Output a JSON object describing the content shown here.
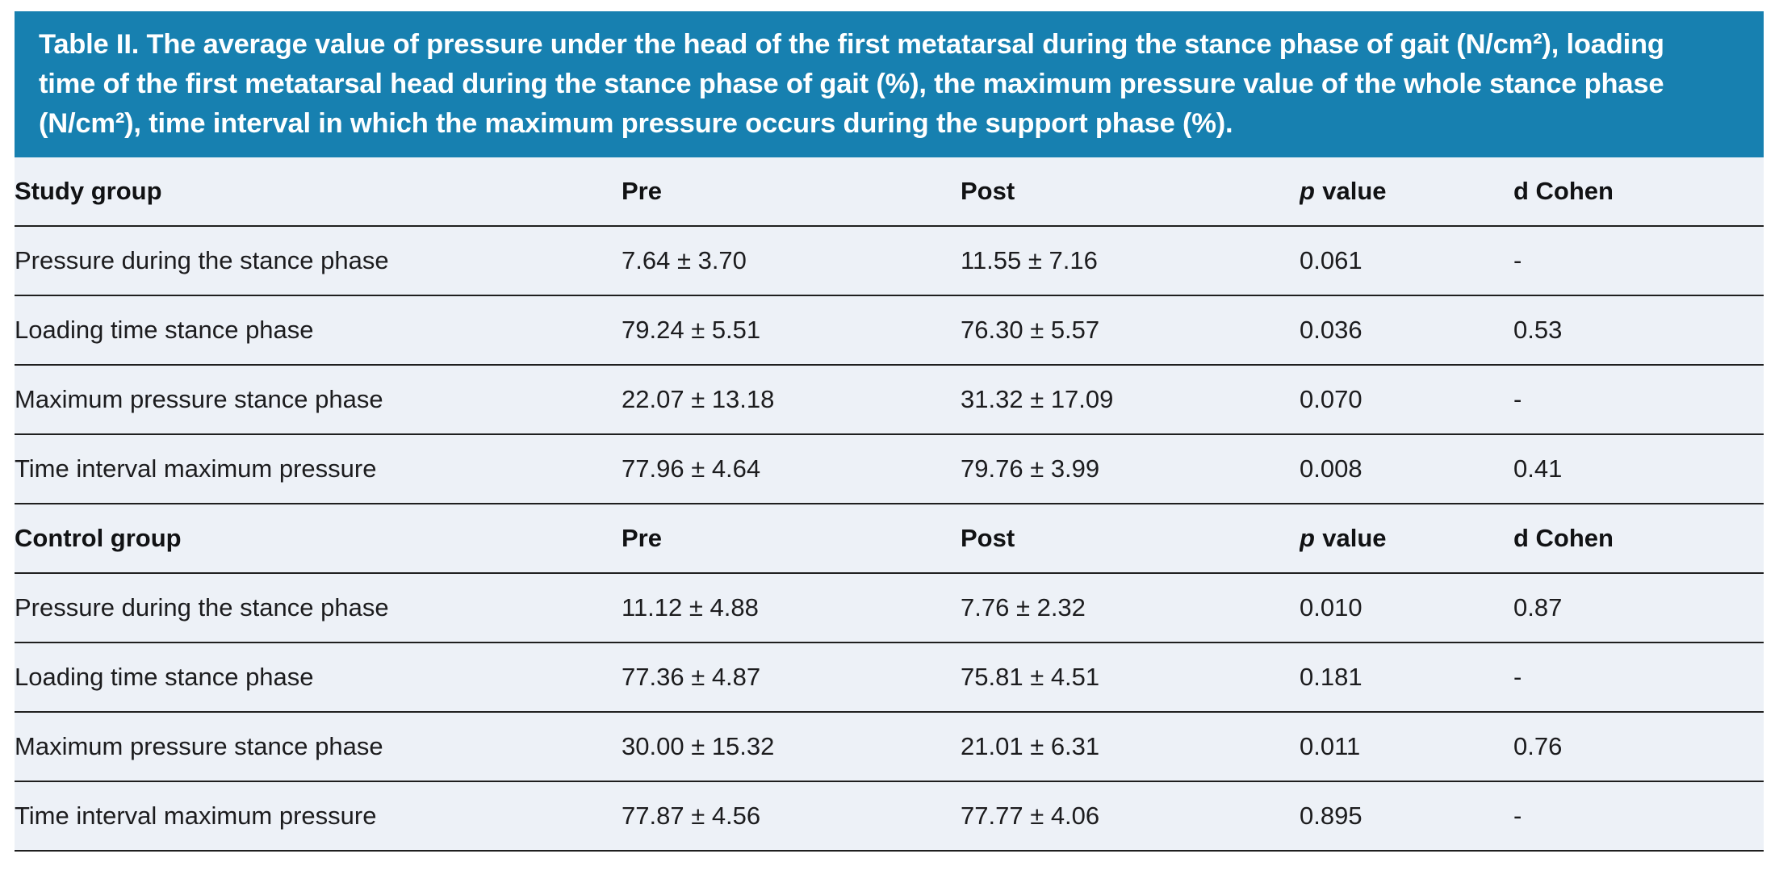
{
  "colors": {
    "caption_background": "#1780b0",
    "caption_text": "#ffffff",
    "table_background": "#edf1f7",
    "rule_line": "#1f1f1f",
    "body_text": "#1c1c1e"
  },
  "table": {
    "caption": "Table II. The average value of pressure under the head of the first metatarsal during the stance phase of gait (N/cm²), loading time of the first metatarsal head during the stance phase of gait (%), the maximum pressure value of the whole stance phase (N/cm²), time interval in which the maximum pressure occurs during the support phase (%).",
    "headers": {
      "pre": "Pre",
      "post": "Post",
      "p_prefix": "p",
      "p_suffix": "value",
      "d_cohen": "d Cohen"
    },
    "sections": [
      {
        "group_label": "Study group",
        "rows": [
          {
            "label": "Pressure during the stance phase",
            "pre": "7.64 ± 3.70",
            "post": "11.55 ± 7.16",
            "p": "0.061",
            "d": "-"
          },
          {
            "label": "Loading time stance phase",
            "pre": "79.24 ± 5.51",
            "post": "76.30 ± 5.57",
            "p": "0.036",
            "d": "0.53"
          },
          {
            "label": "Maximum pressure stance phase",
            "pre": "22.07 ± 13.18",
            "post": "31.32 ± 17.09",
            "p": "0.070",
            "d": "-"
          },
          {
            "label": "Time interval maximum pressure",
            "pre": "77.96 ± 4.64",
            "post": "79.76 ± 3.99",
            "p": "0.008",
            "d": "0.41"
          }
        ]
      },
      {
        "group_label": "Control group",
        "rows": [
          {
            "label": "Pressure during the stance phase",
            "pre": "11.12 ± 4.88",
            "post": "7.76 ± 2.32",
            "p": "0.010",
            "d": "0.87"
          },
          {
            "label": "Loading time stance phase",
            "pre": "77.36 ± 4.87",
            "post": "75.81 ± 4.51",
            "p": "0.181",
            "d": "-"
          },
          {
            "label": "Maximum pressure stance phase",
            "pre": "30.00 ± 15.32",
            "post": "21.01 ± 6.31",
            "p": "0.011",
            "d": "0.76"
          },
          {
            "label": "Time interval maximum pressure",
            "pre": "77.87 ± 4.56",
            "post": "77.77 ± 4.06",
            "p": "0.895",
            "d": "-"
          }
        ]
      }
    ]
  }
}
